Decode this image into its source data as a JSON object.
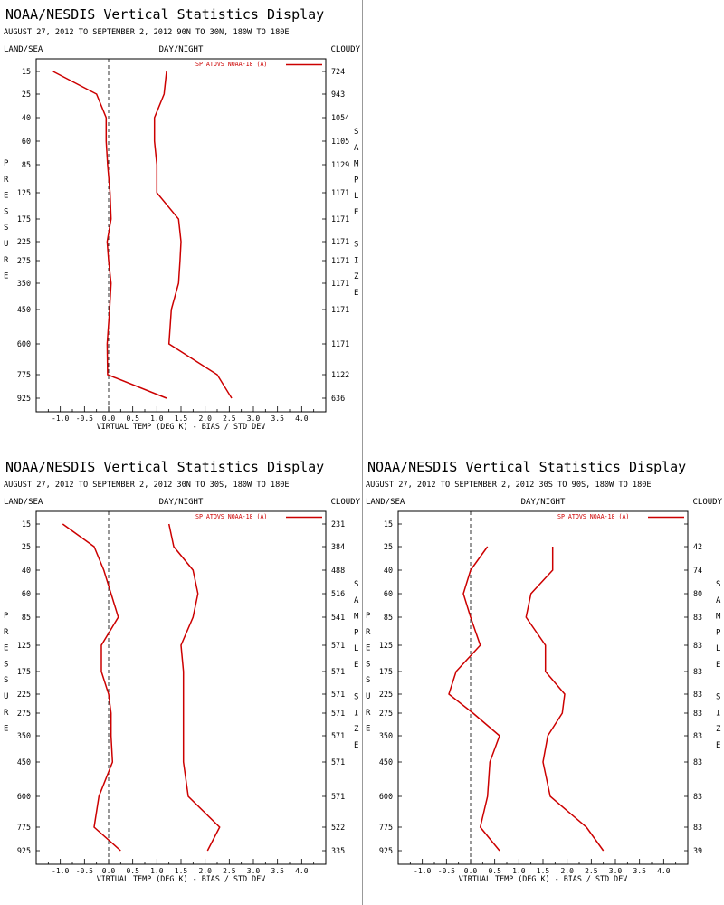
{
  "header": {
    "title": "NOAA/NESDIS Vertical Statistics Display",
    "col_left": "LAND/SEA",
    "col_mid": "DAY/NIGHT",
    "col_right": "CLOUDY",
    "left_axis_letters": [
      "P",
      "R",
      "E",
      "S",
      "S",
      "U",
      "R",
      "E"
    ],
    "right_axis_letters": [
      "S",
      "A",
      "M",
      "P",
      "L",
      "E",
      "",
      "S",
      "I",
      "Z",
      "E"
    ],
    "xlabel": "VIRTUAL TEMP (DEG K) - BIAS / STD DEV",
    "legend": "SP ATOVS NOAA-18 (A)"
  },
  "chart_data": [
    {
      "type": "line",
      "subtitle": "AUGUST 27, 2012 TO SEPTEMBER 2, 2012  90N TO 30N, 180W TO 180E",
      "xlim": [
        -1.5,
        4.5
      ],
      "xticks": [
        "-1.0",
        "-0.5",
        "0.0",
        "0.5",
        "1.0",
        "1.5",
        "2.0",
        "2.5",
        "3.0",
        "3.5",
        "4.0"
      ],
      "pressure_levels": [
        "15",
        "25",
        "40",
        "60",
        "85",
        "125",
        "175",
        "225",
        "275",
        "350",
        "450",
        "600",
        "775",
        "925"
      ],
      "sample_size": [
        "724",
        "943",
        "1054",
        "1105",
        "1129",
        "1171",
        "1171",
        "1171",
        "1171",
        "1171",
        "1171",
        "1171",
        "1122",
        "636"
      ],
      "series": [
        {
          "values": [
            -1.15,
            -0.25,
            -0.05,
            -0.05,
            -0.02,
            0.03,
            0.05,
            -0.03,
            0.0,
            0.05,
            0.02,
            -0.03,
            -0.02,
            1.2
          ]
        },
        {
          "values": [
            1.2,
            1.15,
            0.95,
            0.95,
            1.0,
            1.0,
            1.45,
            1.5,
            1.48,
            1.45,
            1.3,
            1.25,
            2.25,
            2.55
          ]
        }
      ]
    },
    {
      "type": "line",
      "subtitle": "AUGUST 27, 2012 TO SEPTEMBER 2, 2012  30N TO 30S, 180W TO 180E",
      "xlim": [
        -1.5,
        4.5
      ],
      "xticks": [
        "-1.0",
        "-0.5",
        "0.0",
        "0.5",
        "1.0",
        "1.5",
        "2.0",
        "2.5",
        "3.0",
        "3.5",
        "4.0"
      ],
      "pressure_levels": [
        "15",
        "25",
        "40",
        "60",
        "85",
        "125",
        "175",
        "225",
        "275",
        "350",
        "450",
        "600",
        "775",
        "925"
      ],
      "sample_size": [
        "231",
        "384",
        "488",
        "516",
        "541",
        "571",
        "571",
        "571",
        "571",
        "571",
        "571",
        "571",
        "522",
        "335"
      ],
      "series": [
        {
          "values": [
            -0.95,
            -0.3,
            -0.1,
            0.05,
            0.2,
            -0.15,
            -0.15,
            0.0,
            0.05,
            0.05,
            0.08,
            -0.2,
            -0.3,
            0.25
          ]
        },
        {
          "values": [
            1.25,
            1.35,
            1.75,
            1.85,
            1.75,
            1.5,
            1.55,
            1.55,
            1.55,
            1.55,
            1.55,
            1.65,
            2.3,
            2.05
          ]
        }
      ]
    },
    {
      "type": "line",
      "subtitle": "AUGUST 27, 2012 TO SEPTEMBER 2, 2012  30S TO 90S, 180W TO 180E",
      "xlim": [
        -1.5,
        4.5
      ],
      "xticks": [
        "-1.0",
        "-0.5",
        "0.0",
        "0.5",
        "1.0",
        "1.5",
        "2.0",
        "2.5",
        "3.0",
        "3.5",
        "4.0"
      ],
      "pressure_levels": [
        "15",
        "25",
        "40",
        "60",
        "85",
        "125",
        "175",
        "225",
        "275",
        "350",
        "450",
        "600",
        "775",
        "925"
      ],
      "sample_size": [
        "",
        "42",
        "74",
        "80",
        "83",
        "83",
        "83",
        "83",
        "83",
        "83",
        "83",
        "83",
        "83",
        "39"
      ],
      "series": [
        {
          "values": [
            null,
            0.35,
            0.0,
            -0.15,
            0.0,
            0.2,
            -0.3,
            -0.45,
            0.05,
            0.6,
            0.4,
            0.35,
            0.2,
            0.6
          ]
        },
        {
          "values": [
            null,
            1.7,
            1.7,
            1.25,
            1.15,
            1.55,
            1.55,
            1.95,
            1.9,
            1.6,
            1.5,
            1.65,
            2.4,
            2.75
          ]
        }
      ]
    }
  ]
}
